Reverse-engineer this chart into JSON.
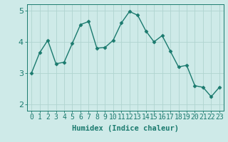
{
  "x": [
    0,
    1,
    2,
    3,
    4,
    5,
    6,
    7,
    8,
    9,
    10,
    11,
    12,
    13,
    14,
    15,
    16,
    17,
    18,
    19,
    20,
    21,
    22,
    23
  ],
  "y": [
    3.0,
    3.65,
    4.05,
    3.3,
    3.35,
    3.95,
    4.55,
    4.65,
    3.8,
    3.82,
    4.05,
    4.6,
    4.97,
    4.85,
    4.35,
    4.0,
    4.2,
    3.7,
    3.2,
    3.25,
    2.6,
    2.55,
    2.25,
    2.55
  ],
  "line_color": "#1a7a6e",
  "marker": "D",
  "marker_size": 2.5,
  "bg_color": "#ceeae8",
  "grid_color": "#afd4d0",
  "xlabel": "Humidex (Indice chaleur)",
  "ylim": [
    1.8,
    5.2
  ],
  "xlim": [
    -0.5,
    23.5
  ],
  "yticks": [
    2,
    3,
    4,
    5
  ],
  "xtick_labels": [
    "0",
    "1",
    "2",
    "3",
    "4",
    "5",
    "6",
    "7",
    "8",
    "9",
    "10",
    "11",
    "12",
    "13",
    "14",
    "15",
    "16",
    "17",
    "18",
    "19",
    "20",
    "21",
    "22",
    "23"
  ],
  "xlabel_fontsize": 7.5,
  "tick_fontsize": 7,
  "tick_color": "#1a7a6e",
  "axis_color": "#1a7a6e",
  "linewidth": 1.0
}
